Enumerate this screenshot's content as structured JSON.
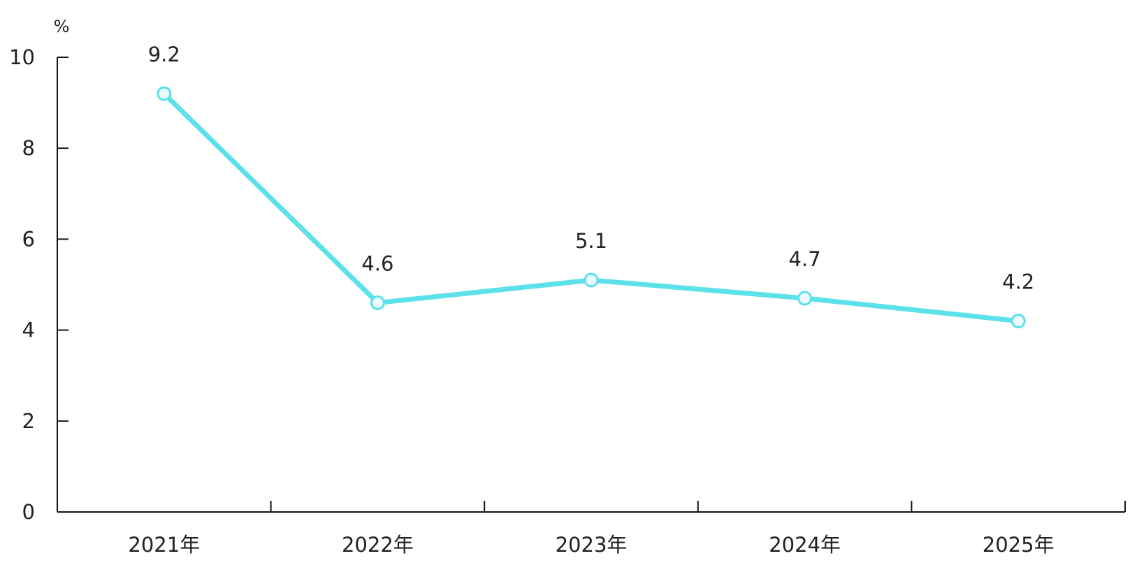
{
  "chart_data": {
    "type": "line",
    "title": "",
    "xlabel": "",
    "ylabel": "%",
    "categories": [
      "2021年",
      "2022年",
      "2023年",
      "2024年",
      "2025年"
    ],
    "series": [
      {
        "values": [
          9.2,
          4.6,
          5.1,
          4.7,
          4.2
        ],
        "color": "#5ce1ea"
      }
    ],
    "data_labels": [
      "9.2",
      "4.6",
      "5.1",
      "4.7",
      "4.2"
    ],
    "ylim": [
      0,
      10
    ],
    "yticks": [
      "0",
      "2",
      "4",
      "6",
      "8",
      "10"
    ],
    "grid": false,
    "legend": "none"
  }
}
